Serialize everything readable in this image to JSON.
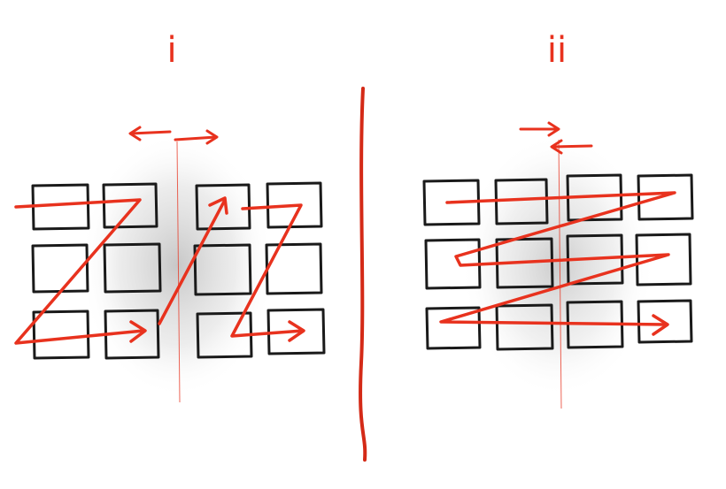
{
  "panels": [
    {
      "label": "i"
    },
    {
      "label": "ii"
    }
  ],
  "colors": {
    "accent": "#e8321e",
    "box_stroke": "#1a1a1a",
    "shadow": "#9a9a9a"
  }
}
